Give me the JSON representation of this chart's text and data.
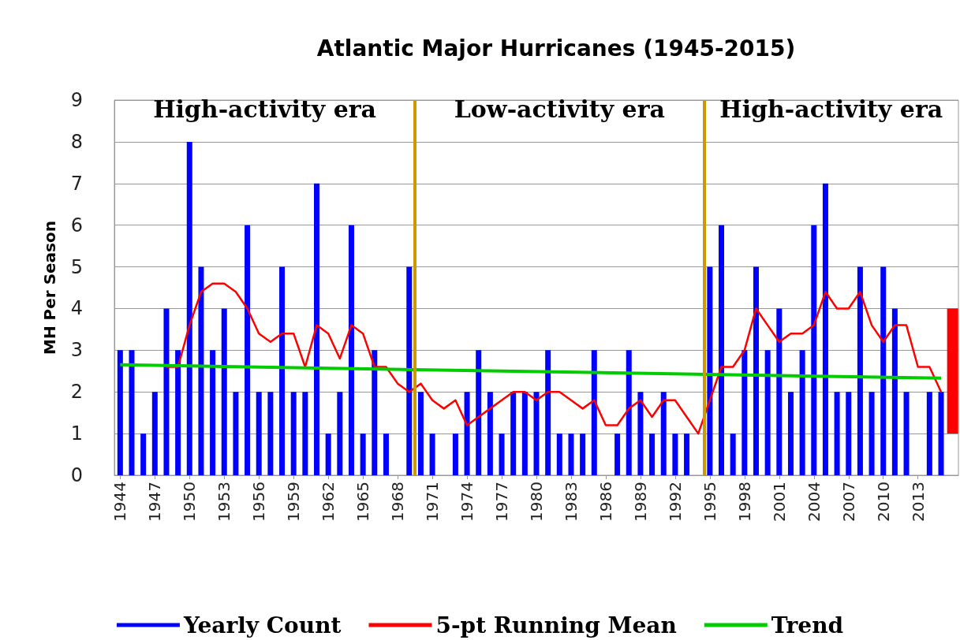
{
  "chart_data": {
    "type": "bar",
    "title": "Atlantic Major Hurricanes (1945-2015)",
    "ylabel": "MH Per Season",
    "x": [
      1944,
      1945,
      1946,
      1947,
      1948,
      1949,
      1950,
      1951,
      1952,
      1953,
      1954,
      1955,
      1956,
      1957,
      1958,
      1959,
      1960,
      1961,
      1962,
      1963,
      1964,
      1965,
      1966,
      1967,
      1968,
      1969,
      1970,
      1971,
      1972,
      1973,
      1974,
      1975,
      1976,
      1977,
      1978,
      1979,
      1980,
      1981,
      1982,
      1983,
      1984,
      1985,
      1986,
      1987,
      1988,
      1989,
      1990,
      1991,
      1992,
      1993,
      1994,
      1995,
      1996,
      1997,
      1998,
      1999,
      2000,
      2001,
      2002,
      2003,
      2004,
      2005,
      2006,
      2007,
      2008,
      2009,
      2010,
      2011,
      2012,
      2013,
      2014,
      2015
    ],
    "series": [
      {
        "name": "Yearly Count",
        "color": "#0000ff",
        "values": [
          3,
          3,
          1,
          2,
          4,
          3,
          8,
          5,
          3,
          4,
          2,
          6,
          2,
          2,
          5,
          2,
          2,
          7,
          1,
          2,
          6,
          1,
          3,
          1,
          0,
          5,
          2,
          1,
          0,
          1,
          2,
          3,
          2,
          1,
          2,
          2,
          2,
          3,
          1,
          1,
          1,
          3,
          0,
          1,
          3,
          2,
          1,
          2,
          1,
          1,
          0,
          5,
          6,
          1,
          3,
          5,
          3,
          4,
          2,
          3,
          6,
          7,
          2,
          2,
          5,
          2,
          5,
          4,
          2,
          0,
          2,
          2
        ]
      },
      {
        "name": "5-pt Running Mean",
        "type": "line",
        "color": "#ff0000",
        "x": [
          1948,
          1949,
          1950,
          1951,
          1952,
          1953,
          1954,
          1955,
          1956,
          1957,
          1958,
          1959,
          1960,
          1961,
          1962,
          1963,
          1964,
          1965,
          1966,
          1967,
          1968,
          1969,
          1970,
          1971,
          1972,
          1973,
          1974,
          1975,
          1976,
          1977,
          1978,
          1979,
          1980,
          1981,
          1982,
          1983,
          1984,
          1985,
          1986,
          1987,
          1988,
          1989,
          1990,
          1991,
          1992,
          1993,
          1994,
          1995,
          1996,
          1997,
          1998,
          1999,
          2000,
          2001,
          2002,
          2003,
          2004,
          2005,
          2006,
          2007,
          2008,
          2009,
          2010,
          2011,
          2012,
          2013,
          2014,
          2015
        ],
        "values": [
          2.6,
          2.6,
          3.6,
          4.4,
          4.6,
          4.6,
          4.4,
          4.0,
          3.4,
          3.2,
          3.4,
          3.4,
          2.6,
          3.6,
          3.4,
          2.8,
          3.6,
          3.4,
          2.6,
          2.6,
          2.2,
          2.0,
          2.2,
          1.8,
          1.6,
          1.8,
          1.2,
          1.4,
          1.6,
          1.8,
          2.0,
          2.0,
          1.8,
          2.0,
          2.0,
          1.8,
          1.6,
          1.8,
          1.2,
          1.2,
          1.6,
          1.8,
          1.4,
          1.8,
          1.8,
          1.4,
          1.0,
          1.8,
          2.6,
          2.6,
          3.0,
          4.0,
          3.6,
          3.2,
          3.4,
          3.4,
          3.6,
          4.4,
          4.0,
          4.0,
          4.4,
          3.6,
          3.2,
          3.6,
          3.6,
          2.6,
          2.6,
          2.0
        ]
      },
      {
        "name": "Trend",
        "type": "line",
        "color": "#00cc00",
        "x": [
          1944,
          2015
        ],
        "values": [
          2.65,
          2.33
        ]
      },
      {
        "type": "bar",
        "color": "#ff0000",
        "x": [
          2016
        ],
        "base": [
          1
        ],
        "values": [
          3
        ]
      }
    ],
    "xlim": [
      1943.5,
      2016.5
    ],
    "xticks": [
      1944,
      1947,
      1950,
      1953,
      1956,
      1959,
      1962,
      1965,
      1968,
      1971,
      1974,
      1977,
      1980,
      1983,
      1986,
      1989,
      1992,
      1995,
      1998,
      2001,
      2004,
      2007,
      2010,
      2013
    ],
    "ylim": [
      0,
      9
    ],
    "yticks": [
      0,
      1,
      2,
      3,
      4,
      5,
      6,
      7,
      8,
      9
    ],
    "ref_lines": [
      {
        "axis": "x",
        "value": 1969.5,
        "color": "#cc9900"
      },
      {
        "axis": "x",
        "value": 1994.5,
        "color": "#cc9900"
      }
    ],
    "annotations": [
      "High-activity era",
      "Low-activity era",
      "High-activity era"
    ],
    "grid": "y",
    "legend": "bottom",
    "marker": "none"
  }
}
